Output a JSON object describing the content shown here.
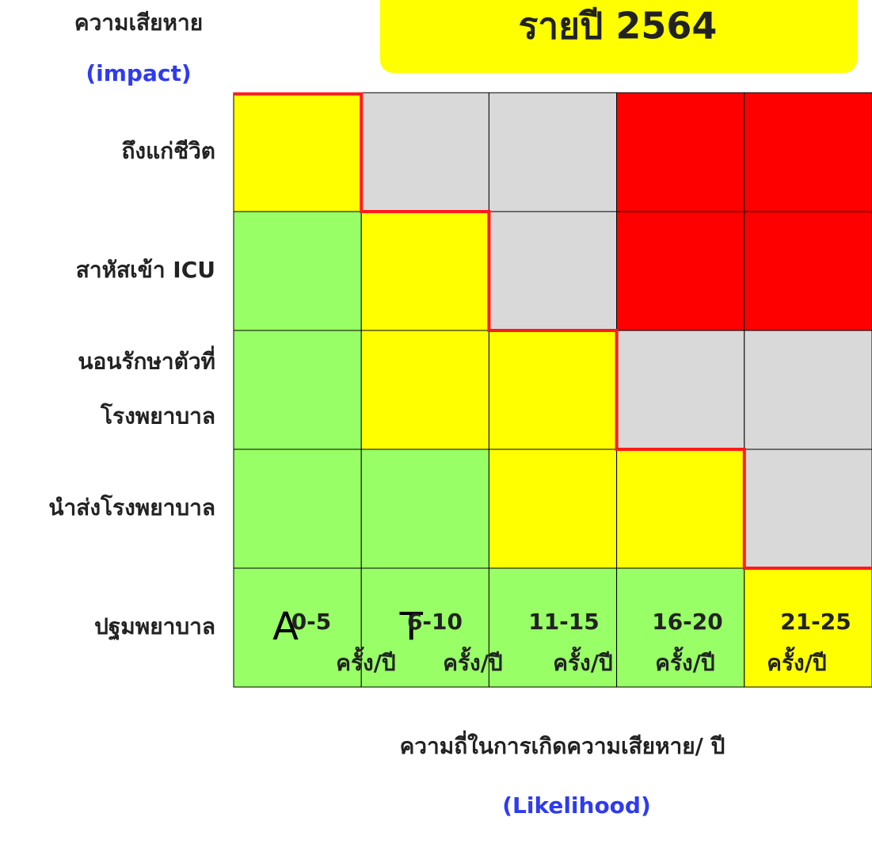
{
  "title": "รายปี 2564",
  "y_axis": {
    "title": "ความเสียหาย",
    "subtitle": "(impact)"
  },
  "x_axis": {
    "title": "ความถี่ในการเกิดความเสียหาย/ ปี",
    "subtitle": "(Likelihood)"
  },
  "columns": [
    [
      "0-5",
      "ครั้ง/ปี"
    ],
    [
      "6-10",
      "ครั้ง/ปี"
    ],
    [
      "11-15",
      "ครั้ง/ปี"
    ],
    [
      "16-20",
      "ครั้ง/ปี"
    ],
    [
      "21-25",
      "ครั้ง/ปี"
    ]
  ],
  "rows": [
    {
      "label": [
        "ถึงแก่ชีวิต"
      ],
      "cells": [
        {
          "color": "#ffff00"
        },
        {
          "color": "#d9d9d9"
        },
        {
          "color": "#d9d9d9"
        },
        {
          "color": "#ff0000"
        },
        {
          "color": "#ff0000"
        }
      ]
    },
    {
      "label": [
        "สาหัสเข้า ICU"
      ],
      "cells": [
        {
          "color": "#99ff66"
        },
        {
          "color": "#ffff00"
        },
        {
          "color": "#d9d9d9"
        },
        {
          "color": "#ff0000"
        },
        {
          "color": "#ff0000"
        }
      ]
    },
    {
      "label": [
        "นอนรักษาตัวที่",
        "โรงพยาบาล"
      ],
      "cells": [
        {
          "color": "#99ff66"
        },
        {
          "color": "#ffff00"
        },
        {
          "color": "#ffff00"
        },
        {
          "color": "#d9d9d9"
        },
        {
          "color": "#d9d9d9"
        }
      ]
    },
    {
      "label": [
        "นำส่งโรงพยาบาล"
      ],
      "cells": [
        {
          "color": "#99ff66"
        },
        {
          "color": "#99ff66"
        },
        {
          "color": "#ffff00"
        },
        {
          "color": "#ffff00"
        },
        {
          "color": "#d9d9d9"
        }
      ]
    },
    {
      "label": [
        "ปฐมพยาบาล"
      ],
      "cells": [
        {
          "color": "#99ff66",
          "text": "A"
        },
        {
          "color": "#99ff66",
          "text": "T"
        },
        {
          "color": "#99ff66"
        },
        {
          "color": "#99ff66"
        },
        {
          "color": "#ffff00"
        }
      ]
    }
  ]
}
